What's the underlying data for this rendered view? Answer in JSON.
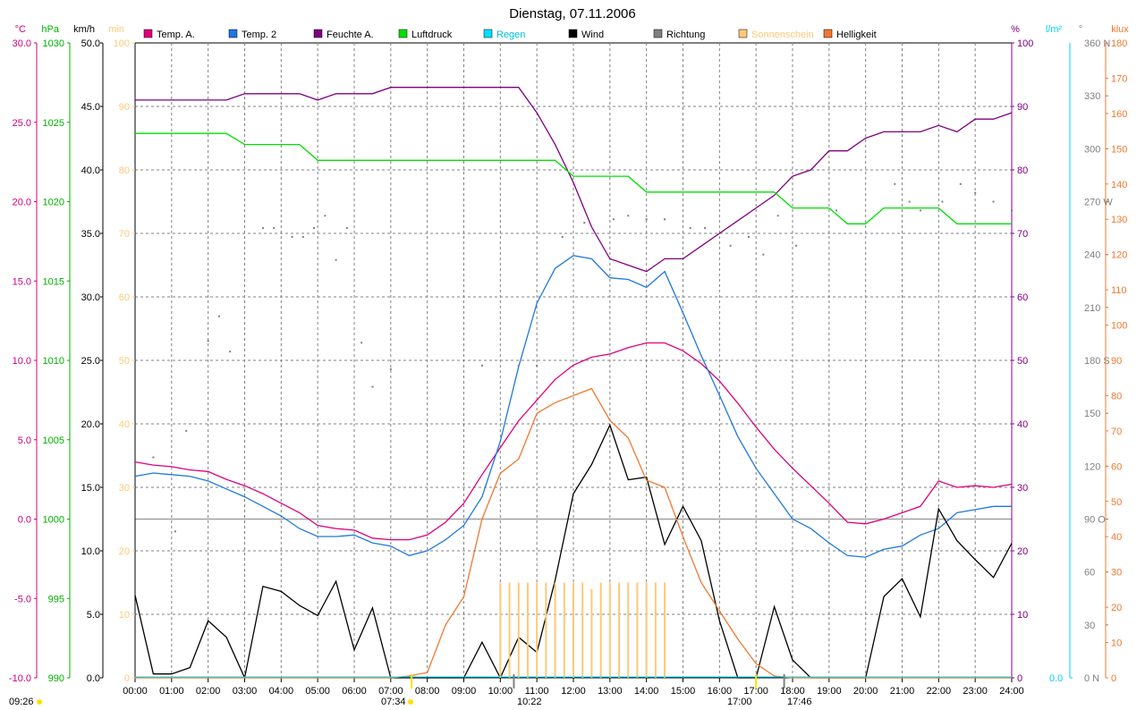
{
  "title": "Dienstag, 07.11.2006",
  "axes_left": {
    "temp": {
      "unit": "°C",
      "color": "#d0007a",
      "ticks": [
        "30.0",
        "25.0",
        "20.0",
        "15.0",
        "10.0",
        "5.0",
        "0.0",
        "-5.0",
        "-10.0"
      ]
    },
    "pressure": {
      "unit": "hPa",
      "color": "#00b000",
      "ticks": [
        "1030",
        "1025",
        "1020",
        "1015",
        "1010",
        "1005",
        "1000",
        "995",
        "990"
      ]
    },
    "wind": {
      "unit": "km/h",
      "color": "#000000",
      "ticks": [
        "50.0",
        "45.0",
        "40.0",
        "35.0",
        "30.0",
        "25.0",
        "20.0",
        "15.0",
        "10.0",
        "5.0",
        "0.0"
      ]
    },
    "sun": {
      "unit": "min",
      "color": "#ffc878",
      "ticks": [
        "100",
        "90",
        "80",
        "70",
        "60",
        "50",
        "40",
        "30",
        "20",
        "10",
        "0"
      ]
    }
  },
  "axes_right": {
    "humidity": {
      "unit": "%",
      "color": "#800080",
      "ticks": [
        "100",
        "90",
        "80",
        "70",
        "60",
        "50",
        "40",
        "30",
        "20",
        "10",
        "0"
      ]
    },
    "rain": {
      "unit": "l/m²",
      "color": "#00d0ff",
      "ticks": [
        "0.0"
      ]
    },
    "direction": {
      "unit": "°",
      "color": "#808080",
      "ticks": [
        "360 N",
        "330",
        "300",
        "270 W",
        "240",
        "210",
        "180 S",
        "150",
        "120",
        "90 O",
        "60",
        "30",
        "0 N"
      ]
    },
    "brightness": {
      "unit": "klux",
      "color": "#f07830",
      "ticks": [
        "180",
        "170",
        "160",
        "150",
        "140",
        "130",
        "120",
        "110",
        "100",
        "90",
        "80",
        "70",
        "60",
        "50",
        "40",
        "30",
        "20",
        "10",
        "0"
      ]
    }
  },
  "x_ticks": [
    "00:00",
    "01:00",
    "02:00",
    "03:00",
    "04:00",
    "05:00",
    "06:00",
    "07:00",
    "08:00",
    "09:00",
    "10:00",
    "11:00",
    "12:00",
    "13:00",
    "14:00",
    "15:00",
    "16:00",
    "17:00",
    "18:00",
    "19:00",
    "20:00",
    "21:00",
    "22:00",
    "23:00",
    "24:00"
  ],
  "legend": [
    {
      "label": "Temp. A.",
      "color": "#e0007a"
    },
    {
      "label": "Temp. 2",
      "color": "#1e78e0"
    },
    {
      "label": "Feuchte A.",
      "color": "#800080"
    },
    {
      "label": "Luftdruck",
      "color": "#00e000"
    },
    {
      "label": "Regen",
      "color": "#00e0ff"
    },
    {
      "label": "Wind",
      "color": "#000000"
    },
    {
      "label": "Richtung",
      "color": "#808080"
    },
    {
      "label": "Sonnenschein",
      "color": "#ffc878"
    },
    {
      "label": "Helligkeit",
      "color": "#f07830"
    }
  ],
  "bottom_labels": {
    "left_time": "09:26",
    "sunrise": "07:34",
    "culmination": "10:22",
    "sunset": "17:46",
    "civil": "17:00"
  },
  "chart_data": {
    "type": "line",
    "title": "Dienstag, 07.11.2006",
    "x_range": [
      0,
      24
    ],
    "series": [
      {
        "name": "Temp. A.",
        "unit": "°C",
        "range": [
          -10,
          30
        ],
        "x": [
          0,
          0.5,
          1,
          1.5,
          2,
          2.5,
          3,
          3.5,
          4,
          4.5,
          5,
          5.5,
          6,
          6.5,
          7,
          7.5,
          8,
          8.5,
          9,
          9.5,
          10,
          10.5,
          11,
          11.5,
          12,
          12.5,
          13,
          13.5,
          14,
          14.5,
          15,
          15.5,
          16,
          16.5,
          17,
          17.5,
          18,
          18.5,
          19,
          19.5,
          20,
          20.5,
          21,
          21.5,
          22,
          22.5,
          23,
          23.5,
          24
        ],
        "y": [
          3.6,
          3.4,
          3.3,
          3.1,
          3.0,
          2.5,
          2.1,
          1.6,
          1.0,
          0.4,
          -0.4,
          -0.6,
          -0.7,
          -1.2,
          -1.3,
          -1.3,
          -1.0,
          -0.2,
          1.0,
          2.8,
          4.5,
          6.2,
          7.5,
          8.8,
          9.7,
          10.2,
          10.4,
          10.8,
          11.1,
          11.1,
          10.6,
          9.8,
          8.7,
          7.3,
          5.8,
          4.4,
          3.2,
          2.1,
          1.0,
          -0.2,
          -0.3,
          0.0,
          0.4,
          0.8,
          2.4,
          2.0,
          2.1,
          2.0,
          2.2
        ]
      },
      {
        "name": "Temp. 2",
        "unit": "°C",
        "range": [
          -10,
          30
        ],
        "x": [
          0,
          0.5,
          1,
          1.5,
          2,
          2.5,
          3,
          3.5,
          4,
          4.5,
          5,
          5.5,
          6,
          6.5,
          7,
          7.5,
          8,
          8.5,
          9,
          9.5,
          10,
          10.5,
          11,
          11.5,
          12,
          12.5,
          13,
          13.5,
          14,
          14.5,
          15,
          15.5,
          16,
          16.5,
          17,
          17.5,
          18,
          18.5,
          19,
          19.5,
          20,
          20.5,
          21,
          21.5,
          22,
          22.5,
          23,
          23.5,
          24
        ],
        "y": [
          2.7,
          2.9,
          2.8,
          2.7,
          2.4,
          1.9,
          1.4,
          0.8,
          0.2,
          -0.6,
          -1.1,
          -1.1,
          -1.0,
          -1.5,
          -1.7,
          -2.3,
          -2.0,
          -1.3,
          -0.4,
          1.4,
          4.9,
          9.6,
          13.6,
          15.8,
          16.6,
          16.4,
          15.2,
          15.1,
          14.6,
          15.6,
          13.0,
          10.3,
          7.8,
          5.2,
          3.2,
          1.6,
          0.0,
          -0.6,
          -1.5,
          -2.3,
          -2.4,
          -1.9,
          -1.7,
          -1.0,
          -0.6,
          0.4,
          0.6,
          0.8,
          0.8
        ]
      },
      {
        "name": "Feuchte A.",
        "unit": "%",
        "range": [
          0,
          100
        ],
        "x": [
          0,
          0.5,
          1,
          1.5,
          2,
          2.5,
          3,
          3.5,
          4,
          4.5,
          5,
          5.5,
          6,
          6.5,
          7,
          7.5,
          8,
          8.5,
          9,
          9.5,
          10,
          10.5,
          11,
          11.5,
          12,
          12.5,
          13,
          13.5,
          14,
          14.5,
          15,
          15.5,
          16,
          16.5,
          17,
          17.5,
          18,
          18.5,
          19,
          19.5,
          20,
          20.5,
          21,
          21.5,
          22,
          22.5,
          23,
          23.5,
          24
        ],
        "y": [
          91,
          91,
          91,
          91,
          91,
          91,
          92,
          92,
          92,
          92,
          91,
          92,
          92,
          92,
          93,
          93,
          93,
          93,
          93,
          93,
          93,
          93,
          89,
          84,
          78,
          71,
          66,
          65,
          64,
          66,
          66,
          68,
          70,
          72,
          74,
          76,
          79,
          80,
          83,
          83,
          85,
          86,
          86,
          86,
          87,
          86,
          88,
          88,
          89
        ]
      },
      {
        "name": "Luftdruck",
        "unit": "hPa",
        "range": [
          990,
          1030
        ],
        "x": [
          0,
          0.5,
          1,
          1.5,
          2,
          2.5,
          3,
          3.5,
          4,
          4.5,
          5,
          5.5,
          6,
          6.5,
          7,
          7.5,
          8,
          8.5,
          9,
          9.5,
          10,
          10.5,
          11,
          11.5,
          12,
          12.5,
          13,
          13.5,
          14,
          14.5,
          15,
          15.5,
          16,
          16.5,
          17,
          17.5,
          18,
          18.5,
          19,
          19.5,
          20,
          20.5,
          21,
          21.5,
          22,
          22.5,
          23,
          23.5,
          24
        ],
        "y": [
          1024.3,
          1024.3,
          1024.3,
          1024.3,
          1024.3,
          1024.3,
          1023.6,
          1023.6,
          1023.6,
          1023.6,
          1022.6,
          1022.6,
          1022.6,
          1022.6,
          1022.6,
          1022.6,
          1022.6,
          1022.6,
          1022.6,
          1022.6,
          1022.6,
          1022.6,
          1022.6,
          1022.6,
          1021.6,
          1021.6,
          1021.6,
          1021.6,
          1020.6,
          1020.6,
          1020.6,
          1020.6,
          1020.6,
          1020.6,
          1020.6,
          1020.6,
          1019.6,
          1019.6,
          1019.6,
          1018.6,
          1018.6,
          1019.6,
          1019.6,
          1019.6,
          1019.6,
          1018.6,
          1018.6,
          1018.6,
          1018.6
        ]
      },
      {
        "name": "Wind",
        "unit": "km/h",
        "range": [
          0,
          50
        ],
        "x": [
          0,
          0.5,
          1,
          1.5,
          2,
          2.5,
          3,
          3.5,
          4,
          4.5,
          5,
          5.5,
          6,
          6.5,
          7,
          7.5,
          8,
          8.5,
          9,
          9.5,
          10,
          10.5,
          11,
          11.5,
          12,
          12.5,
          13,
          13.5,
          14,
          14.5,
          15,
          15.5,
          16,
          16.5,
          17,
          17.5,
          18,
          18.5,
          19,
          19.5,
          20,
          20.5,
          21,
          21.5,
          22,
          22.5,
          23,
          23.5,
          24
        ],
        "y": [
          6.5,
          0.3,
          0.3,
          0.8,
          4.5,
          3.2,
          0,
          7.2,
          6.8,
          5.7,
          4.9,
          7.6,
          2.2,
          5.5,
          0,
          0,
          0,
          0,
          0,
          2.8,
          0,
          3.2,
          2.0,
          7.7,
          14.5,
          16.8,
          19.9,
          15.6,
          15.8,
          10.5,
          13.5,
          10.8,
          4.5,
          0,
          0,
          5.6,
          1.4,
          0,
          0,
          0,
          0,
          6.4,
          7.8,
          4.8,
          13.3,
          10.8,
          9.3,
          7.9,
          10.6
        ]
      },
      {
        "name": "Helligkeit",
        "unit": "klux",
        "range": [
          0,
          180
        ],
        "x": [
          0,
          7,
          7.5,
          8,
          8.5,
          9,
          9.5,
          10,
          10.5,
          11,
          11.5,
          12,
          12.5,
          13,
          13.5,
          14,
          14.5,
          15,
          15.5,
          16,
          16.5,
          17,
          17.5,
          18,
          24
        ],
        "y": [
          0,
          0,
          0.5,
          1.5,
          15,
          23,
          45,
          58,
          62,
          75,
          78,
          80,
          82,
          73,
          68,
          56,
          54,
          40,
          27,
          19,
          11,
          4,
          0.5,
          0,
          0
        ]
      },
      {
        "name": "Sonnenschein",
        "unit": "min",
        "range": [
          0,
          100
        ],
        "x": [
          10,
          10.25,
          10.5,
          10.75,
          11,
          11.25,
          11.5,
          11.75,
          12,
          12.25,
          12.5,
          12.75,
          13,
          13.25,
          13.5,
          13.75,
          14,
          14.25,
          14.5
        ],
        "y": [
          15,
          15,
          15,
          15,
          15,
          15,
          15,
          15,
          15,
          15,
          14,
          15,
          15,
          15,
          15,
          15,
          15,
          15,
          15
        ]
      },
      {
        "name": "Richtung",
        "unit": "°",
        "range": [
          0,
          360
        ],
        "x": [
          0.5,
          1.1,
          1.4,
          2.0,
          2.3,
          2.6,
          3.5,
          3.8,
          4.3,
          4.6,
          4.9,
          5.2,
          5.5,
          5.8,
          6.2,
          6.5,
          7.0,
          9.5,
          10.5,
          11.0,
          11.7,
          12.3,
          13.1,
          13.5,
          14.0,
          14.5,
          15.2,
          15.6,
          16.3,
          16.8,
          17.2,
          17.6,
          18.1,
          19.2,
          20.8,
          21.2,
          21.5,
          22.1,
          22.6,
          23.0,
          23.5,
          24.0
        ],
        "y": [
          125,
          83,
          140,
          191,
          205,
          185,
          255,
          255,
          250,
          250,
          255,
          262,
          237,
          255,
          190,
          165,
          175,
          177,
          177,
          177,
          250,
          258,
          260,
          262,
          260,
          260,
          255,
          255,
          245,
          250,
          240,
          262,
          245,
          265,
          280,
          270,
          265,
          270,
          280,
          275,
          270,
          265
        ]
      },
      {
        "name": "Regen",
        "unit": "l/m²",
        "range": [
          0,
          0
        ],
        "x": [
          0,
          24
        ],
        "y": [
          0,
          0
        ]
      }
    ]
  }
}
